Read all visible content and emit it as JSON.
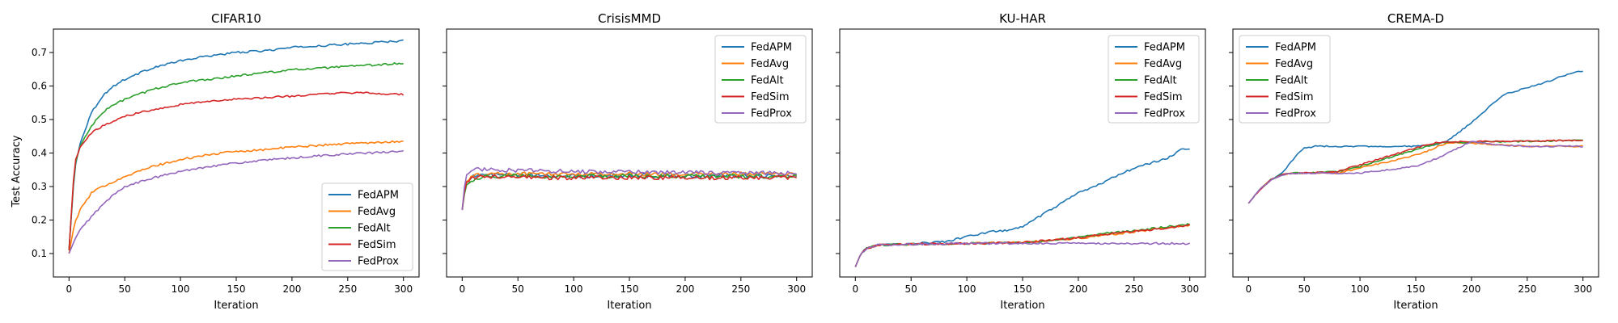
{
  "figure": {
    "ylabel": "Test Accuracy",
    "xlabel": "Iteration"
  },
  "chart_data": [
    {
      "type": "line",
      "title": "CIFAR10",
      "xlabel": "Iteration",
      "ylabel": "Test Accuracy",
      "xlim": [
        -14,
        314
      ],
      "ylim": [
        0.03,
        0.77
      ],
      "xticks": [
        0,
        50,
        100,
        150,
        200,
        250,
        300
      ],
      "yticks": [
        0.1,
        0.2,
        0.3,
        0.4,
        0.5,
        0.6,
        0.7
      ],
      "legend": "lower-right",
      "noise": 0.003,
      "series": [
        {
          "name": "FedAPM",
          "color": "#1f77b4",
          "x": [
            0,
            5,
            10,
            20,
            30,
            40,
            50,
            75,
            100,
            125,
            150,
            175,
            200,
            225,
            250,
            275,
            300
          ],
          "values": [
            0.11,
            0.35,
            0.43,
            0.52,
            0.57,
            0.6,
            0.62,
            0.655,
            0.675,
            0.69,
            0.7,
            0.705,
            0.715,
            0.72,
            0.725,
            0.73,
            0.735
          ]
        },
        {
          "name": "FedAvg",
          "color": "#ff7f0e",
          "x": [
            0,
            5,
            10,
            20,
            30,
            40,
            50,
            75,
            100,
            125,
            150,
            175,
            200,
            225,
            250,
            275,
            300
          ],
          "values": [
            0.1,
            0.19,
            0.23,
            0.28,
            0.3,
            0.315,
            0.33,
            0.36,
            0.38,
            0.395,
            0.405,
            0.41,
            0.418,
            0.423,
            0.428,
            0.432,
            0.435
          ]
        },
        {
          "name": "FedAlt",
          "color": "#2ca02c",
          "x": [
            0,
            5,
            10,
            20,
            30,
            40,
            50,
            75,
            100,
            125,
            150,
            175,
            200,
            225,
            250,
            275,
            300
          ],
          "values": [
            0.11,
            0.36,
            0.42,
            0.48,
            0.52,
            0.545,
            0.56,
            0.59,
            0.61,
            0.62,
            0.63,
            0.64,
            0.648,
            0.653,
            0.658,
            0.663,
            0.668
          ]
        },
        {
          "name": "FedSim",
          "color": "#d62728",
          "x": [
            0,
            5,
            10,
            20,
            30,
            40,
            50,
            75,
            100,
            125,
            150,
            175,
            200,
            225,
            250,
            275,
            300
          ],
          "values": [
            0.11,
            0.37,
            0.42,
            0.46,
            0.48,
            0.495,
            0.51,
            0.53,
            0.545,
            0.555,
            0.56,
            0.565,
            0.57,
            0.575,
            0.58,
            0.578,
            0.575
          ]
        },
        {
          "name": "FedProx",
          "color": "#9467bd",
          "x": [
            0,
            5,
            10,
            20,
            30,
            40,
            50,
            75,
            100,
            125,
            150,
            175,
            200,
            225,
            250,
            275,
            300
          ],
          "values": [
            0.1,
            0.14,
            0.17,
            0.21,
            0.245,
            0.275,
            0.3,
            0.325,
            0.345,
            0.36,
            0.37,
            0.378,
            0.385,
            0.392,
            0.397,
            0.401,
            0.405
          ]
        }
      ]
    },
    {
      "type": "line",
      "title": "CrisisMMD",
      "xlabel": "Iteration",
      "ylabel": "",
      "xlim": [
        -14,
        314
      ],
      "ylim": [
        0.03,
        0.77
      ],
      "xticks": [
        0,
        50,
        100,
        150,
        200,
        250,
        300
      ],
      "yticks": [
        0.1,
        0.2,
        0.3,
        0.4,
        0.5,
        0.6,
        0.7
      ],
      "legend": "top-right",
      "noise": 0.006,
      "series": [
        {
          "name": "FedAPM",
          "color": "#1f77b4",
          "x": [
            0,
            3,
            6,
            10,
            20,
            50,
            100,
            150,
            200,
            250,
            300
          ],
          "values": [
            0.23,
            0.31,
            0.325,
            0.33,
            0.335,
            0.333,
            0.332,
            0.333,
            0.332,
            0.333,
            0.332
          ]
        },
        {
          "name": "FedAvg",
          "color": "#ff7f0e",
          "x": [
            0,
            3,
            6,
            10,
            20,
            50,
            100,
            150,
            200,
            250,
            300
          ],
          "values": [
            0.23,
            0.31,
            0.325,
            0.33,
            0.338,
            0.338,
            0.337,
            0.338,
            0.337,
            0.338,
            0.337
          ]
        },
        {
          "name": "FedAlt",
          "color": "#2ca02c",
          "x": [
            0,
            3,
            6,
            10,
            20,
            50,
            100,
            150,
            200,
            250,
            300
          ],
          "values": [
            0.23,
            0.3,
            0.315,
            0.32,
            0.33,
            0.332,
            0.33,
            0.331,
            0.33,
            0.331,
            0.33
          ]
        },
        {
          "name": "FedSim",
          "color": "#d62728",
          "x": [
            0,
            3,
            6,
            10,
            20,
            50,
            100,
            150,
            200,
            250,
            300
          ],
          "values": [
            0.23,
            0.31,
            0.32,
            0.325,
            0.33,
            0.327,
            0.326,
            0.327,
            0.326,
            0.327,
            0.326
          ]
        },
        {
          "name": "FedProx",
          "color": "#9467bd",
          "x": [
            0,
            3,
            6,
            10,
            20,
            50,
            100,
            150,
            200,
            250,
            300
          ],
          "values": [
            0.23,
            0.33,
            0.345,
            0.35,
            0.352,
            0.348,
            0.345,
            0.343,
            0.342,
            0.341,
            0.34
          ]
        }
      ]
    },
    {
      "type": "line",
      "title": "KU-HAR",
      "xlabel": "Iteration",
      "ylabel": "",
      "xlim": [
        -14,
        314
      ],
      "ylim": [
        0.03,
        0.77
      ],
      "xticks": [
        0,
        50,
        100,
        150,
        200,
        250,
        300
      ],
      "yticks": [
        0.1,
        0.2,
        0.3,
        0.4,
        0.5,
        0.6,
        0.7
      ],
      "legend": "top-right",
      "noise": 0.003,
      "series": [
        {
          "name": "FedAPM",
          "color": "#1f77b4",
          "x": [
            0,
            5,
            10,
            20,
            50,
            80,
            100,
            120,
            140,
            150,
            160,
            175,
            190,
            200,
            215,
            230,
            250,
            265,
            280,
            290,
            295,
            300
          ],
          "values": [
            0.06,
            0.1,
            0.115,
            0.125,
            0.13,
            0.135,
            0.15,
            0.165,
            0.17,
            0.18,
            0.2,
            0.23,
            0.26,
            0.28,
            0.3,
            0.325,
            0.355,
            0.37,
            0.385,
            0.405,
            0.415,
            0.41
          ]
        },
        {
          "name": "FedAvg",
          "color": "#ff7f0e",
          "x": [
            0,
            5,
            10,
            20,
            50,
            100,
            150,
            175,
            200,
            225,
            250,
            275,
            300
          ],
          "values": [
            0.06,
            0.1,
            0.115,
            0.125,
            0.128,
            0.13,
            0.133,
            0.14,
            0.145,
            0.155,
            0.165,
            0.175,
            0.185
          ]
        },
        {
          "name": "FedAlt",
          "color": "#2ca02c",
          "x": [
            0,
            5,
            10,
            20,
            50,
            100,
            150,
            175,
            200,
            225,
            250,
            275,
            300
          ],
          "values": [
            0.06,
            0.1,
            0.115,
            0.125,
            0.128,
            0.13,
            0.133,
            0.14,
            0.148,
            0.16,
            0.168,
            0.178,
            0.188
          ]
        },
        {
          "name": "FedSim",
          "color": "#d62728",
          "x": [
            0,
            5,
            10,
            20,
            50,
            100,
            150,
            175,
            200,
            225,
            250,
            275,
            300
          ],
          "values": [
            0.06,
            0.1,
            0.115,
            0.125,
            0.128,
            0.13,
            0.133,
            0.14,
            0.147,
            0.157,
            0.166,
            0.175,
            0.185
          ]
        },
        {
          "name": "FedProx",
          "color": "#9467bd",
          "x": [
            0,
            5,
            10,
            20,
            50,
            100,
            150,
            200,
            250,
            300
          ],
          "values": [
            0.06,
            0.1,
            0.115,
            0.125,
            0.128,
            0.13,
            0.13,
            0.13,
            0.13,
            0.13
          ]
        }
      ]
    },
    {
      "type": "line",
      "title": "CREMA-D",
      "xlabel": "Iteration",
      "ylabel": "",
      "xlim": [
        -14,
        314
      ],
      "ylim": [
        0.03,
        0.77
      ],
      "xticks": [
        0,
        50,
        100,
        150,
        200,
        250,
        300
      ],
      "yticks": [
        0.1,
        0.2,
        0.3,
        0.4,
        0.5,
        0.6,
        0.7
      ],
      "legend": "top-left",
      "noise": 0.002,
      "series": [
        {
          "name": "FedAPM",
          "color": "#1f77b4",
          "x": [
            0,
            10,
            20,
            30,
            40,
            45,
            50,
            60,
            100,
            150,
            170,
            180,
            190,
            200,
            210,
            220,
            230,
            250,
            270,
            290,
            300
          ],
          "values": [
            0.25,
            0.29,
            0.32,
            0.34,
            0.38,
            0.4,
            0.415,
            0.42,
            0.42,
            0.42,
            0.425,
            0.44,
            0.465,
            0.49,
            0.52,
            0.55,
            0.575,
            0.595,
            0.615,
            0.64,
            0.645
          ]
        },
        {
          "name": "FedAvg",
          "color": "#ff7f0e",
          "x": [
            0,
            10,
            20,
            30,
            40,
            50,
            80,
            100,
            120,
            140,
            160,
            170,
            180,
            200,
            220,
            250,
            300
          ],
          "values": [
            0.25,
            0.29,
            0.32,
            0.335,
            0.34,
            0.34,
            0.34,
            0.355,
            0.37,
            0.385,
            0.405,
            0.42,
            0.43,
            0.43,
            0.425,
            0.42,
            0.42
          ]
        },
        {
          "name": "FedAlt",
          "color": "#2ca02c",
          "x": [
            0,
            10,
            20,
            30,
            40,
            50,
            80,
            100,
            120,
            140,
            160,
            170,
            190,
            220,
            250,
            300
          ],
          "values": [
            0.25,
            0.29,
            0.32,
            0.335,
            0.34,
            0.34,
            0.345,
            0.36,
            0.38,
            0.4,
            0.42,
            0.43,
            0.432,
            0.433,
            0.435,
            0.438
          ]
        },
        {
          "name": "FedSim",
          "color": "#d62728",
          "x": [
            0,
            10,
            20,
            30,
            40,
            50,
            80,
            100,
            120,
            140,
            160,
            170,
            190,
            220,
            250,
            300
          ],
          "values": [
            0.25,
            0.29,
            0.32,
            0.335,
            0.34,
            0.34,
            0.345,
            0.365,
            0.385,
            0.405,
            0.425,
            0.432,
            0.434,
            0.435,
            0.436,
            0.438
          ]
        },
        {
          "name": "FedProx",
          "color": "#9467bd",
          "x": [
            0,
            10,
            20,
            30,
            40,
            50,
            100,
            150,
            170,
            185,
            200,
            220,
            250,
            300
          ],
          "values": [
            0.25,
            0.29,
            0.32,
            0.335,
            0.34,
            0.34,
            0.34,
            0.36,
            0.385,
            0.41,
            0.435,
            0.425,
            0.42,
            0.42
          ]
        }
      ]
    }
  ]
}
